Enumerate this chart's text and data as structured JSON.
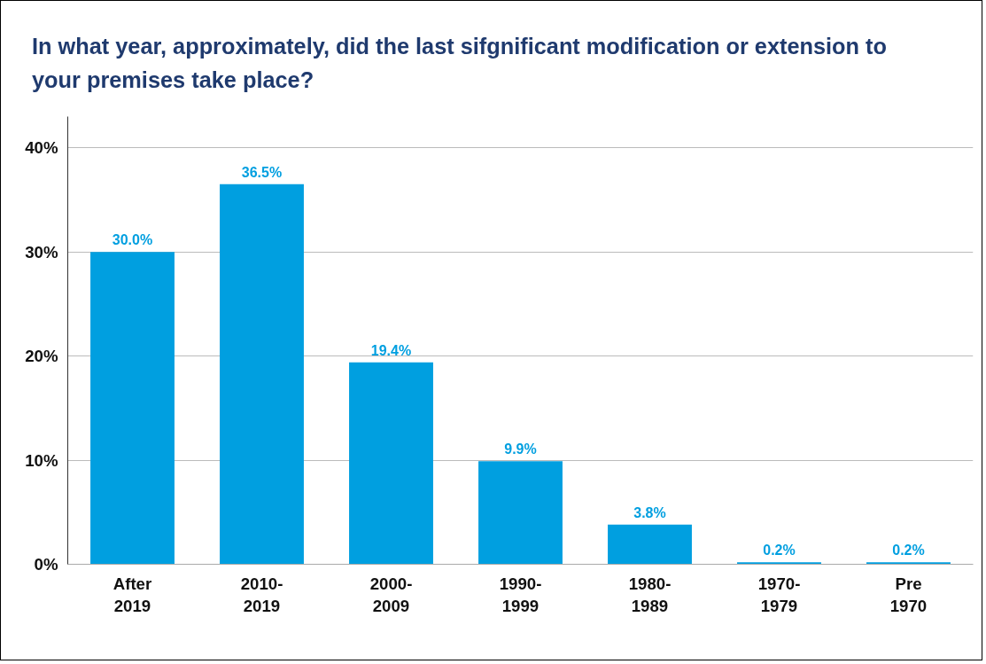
{
  "chart_data": {
    "type": "bar",
    "title": "In what year, approximately, did the last sifgnificant modification or extension to your premises take place?",
    "categories": [
      "After\n2019",
      "2010-\n2019",
      "2000-\n2009",
      "1990-\n1999",
      "1980-\n1989",
      "1970-\n1979",
      "Pre\n1970"
    ],
    "values": [
      30.0,
      36.5,
      19.4,
      9.9,
      3.8,
      0.2,
      0.2
    ],
    "value_labels": [
      "30.0%",
      "36.5%",
      "19.4%",
      "9.9%",
      "3.8%",
      "0.2%",
      "0.2%"
    ],
    "color": "#009fe0",
    "ylim": [
      0,
      43
    ],
    "yticks": [
      {
        "value": 0,
        "label": "0%"
      },
      {
        "value": 10,
        "label": "10%"
      },
      {
        "value": 20,
        "label": "20%"
      },
      {
        "value": 30,
        "label": "30%"
      },
      {
        "value": 40,
        "label": "40%"
      }
    ],
    "grid": "y"
  }
}
